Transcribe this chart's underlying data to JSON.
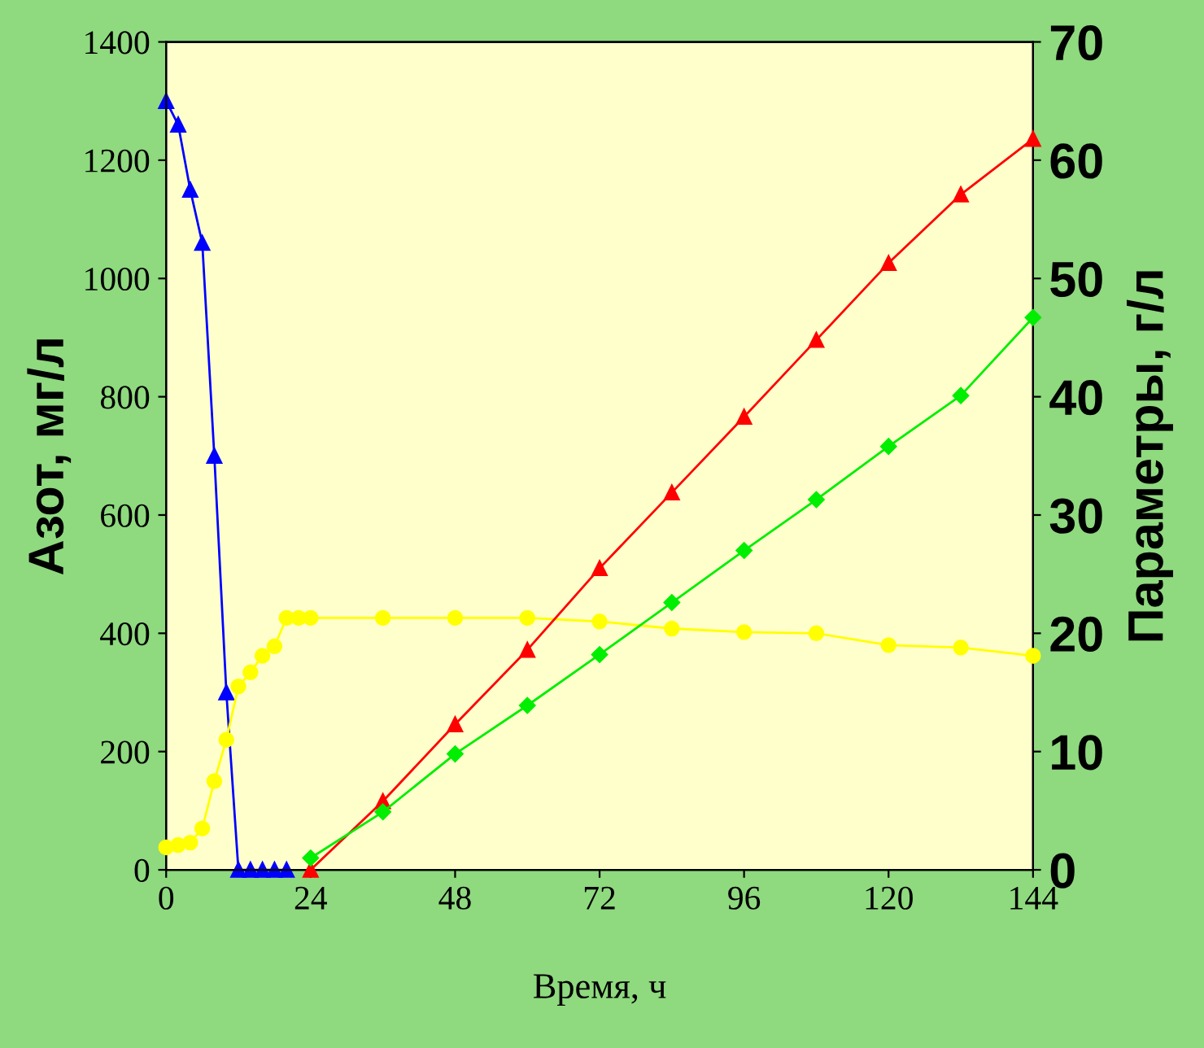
{
  "chart_data": {
    "type": "line",
    "xlabel": "Время, ч",
    "ylabel": "Азот, мг/л",
    "y2label": "Параметры, г/л",
    "xlim": [
      0,
      144
    ],
    "xticks": [
      0,
      24,
      48,
      72,
      96,
      120,
      144
    ],
    "ylim": [
      0,
      1400
    ],
    "yticks": [
      0,
      200,
      400,
      600,
      800,
      1000,
      1200,
      1400
    ],
    "y2lim": [
      0,
      70
    ],
    "y2ticks": [
      0,
      10,
      20,
      30,
      40,
      50,
      60,
      70
    ],
    "grid": false,
    "legend": false,
    "line_style": "solid",
    "series": [
      {
        "color": "#0000ff",
        "marker": "triangle",
        "x": [
          0,
          2,
          4,
          6,
          8,
          10,
          12,
          14,
          16,
          18,
          20
        ],
        "values": [
          1300,
          1260,
          1150,
          1060,
          700,
          300,
          0,
          0,
          0,
          0,
          0
        ]
      },
      {
        "color": "#ffff00",
        "marker": "circle",
        "axis": "y2",
        "x": [
          0,
          2,
          4,
          6,
          8,
          10,
          12,
          14,
          16,
          18,
          20,
          22,
          24,
          36,
          48,
          60,
          72,
          84,
          96,
          108,
          120,
          132,
          144
        ],
        "values": [
          1.9,
          2.1,
          2.3,
          3.5,
          7.5,
          11,
          15.5,
          16.7,
          18.1,
          18.9,
          21.3,
          21.3,
          21.3,
          21.3,
          21.3,
          21.3,
          21.0,
          20.4,
          20.1,
          20.0,
          19.0,
          18.8,
          18.1
        ]
      },
      {
        "color": "#ff0000",
        "marker": "triangle",
        "axis": "y2",
        "x": [
          24,
          36,
          48,
          60,
          72,
          84,
          96,
          108,
          120,
          132,
          144
        ],
        "values": [
          0,
          5.8,
          12.3,
          18.6,
          25.5,
          31.9,
          38.3,
          44.8,
          51.3,
          57.1,
          61.8
        ]
      },
      {
        "color": "#00ee00",
        "marker": "diamond",
        "axis": "y2",
        "x": [
          24,
          36,
          48,
          60,
          72,
          84,
          96,
          108,
          120,
          132,
          144
        ],
        "values": [
          1.0,
          4.9,
          9.8,
          13.9,
          18.2,
          22.6,
          27.0,
          31.3,
          35.8,
          40.1,
          46.7
        ]
      }
    ]
  }
}
